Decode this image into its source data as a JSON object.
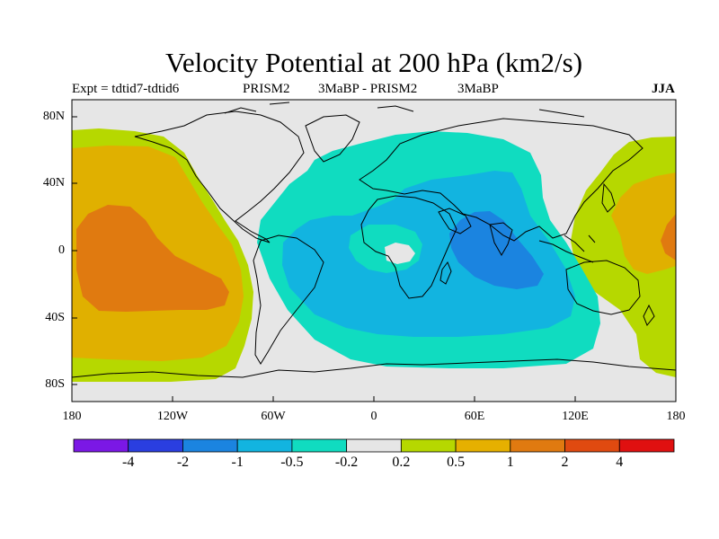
{
  "title": "Velocity Potential at 200 hPa (km2/s)",
  "subtitle": {
    "left": "Expt = tdtid7-tdtid6",
    "model_a": "PRISM2",
    "period_a": "3MaBP - PRISM2",
    "period_b": "3MaBP",
    "season": "JJA"
  },
  "map": {
    "lat_labels": [
      "80N",
      "40N",
      "0",
      "40S",
      "80S"
    ],
    "lon_labels": [
      "180",
      "120W",
      "60W",
      "0",
      "60E",
      "120E",
      "180"
    ],
    "regions": {
      "pacific_positive": "positive velocity potential over the Pacific",
      "atlantic_africa_indian_negative": "negative velocity potential over Atlantic, Africa and Indian Ocean",
      "indian_ocean_minimum": "strongest negative center over the Indian Ocean"
    }
  },
  "colorbar": {
    "levels": [
      "-4",
      "-2",
      "-1",
      "-0.5",
      "-0.2",
      "0.2",
      "0.5",
      "1",
      "2",
      "4"
    ],
    "colors": [
      "#7b18e5",
      "#2a3ee0",
      "#1b84e0",
      "#12b4e0",
      "#10dcc0",
      "#e6e6e6",
      "#b6d800",
      "#e6b000",
      "#e07a10",
      "#e04a10",
      "#e01010"
    ]
  },
  "colors": {
    "land_outline": "#000000",
    "background": "#ffffff"
  }
}
